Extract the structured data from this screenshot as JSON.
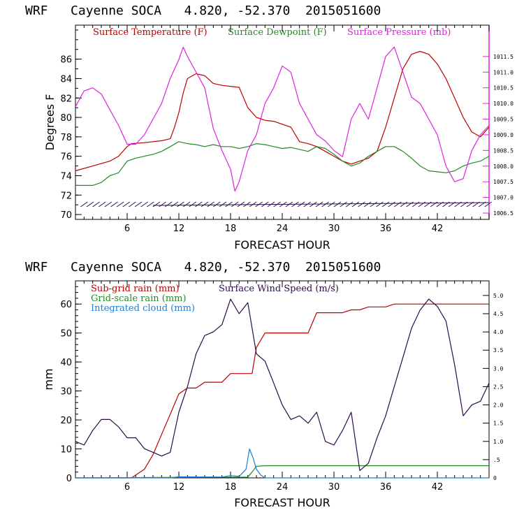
{
  "chart_data": [
    {
      "type": "line",
      "title": "WRF   Cayenne SOCA   4.820, -52.370  2015051600",
      "xlabel": "FORECAST HOUR",
      "ylabel": "Degrees F",
      "xlim": [
        0,
        48
      ],
      "ylim": [
        69.5,
        89.5
      ],
      "x_ticks": [
        "6",
        "12",
        "18",
        "24",
        "30",
        "36",
        "42"
      ],
      "y_ticks": [
        "70",
        "72",
        "74",
        "76",
        "78",
        "80",
        "82",
        "84",
        "86"
      ],
      "right_axis": {
        "ylim": [
          1006.3,
          1012.5
        ],
        "ticks": [
          "1006.5",
          "1007.0",
          "1007.5",
          "1008.0",
          "1008.5",
          "1009.0",
          "1009.5",
          "1010.0",
          "1010.5",
          "1011.0",
          "1011.5"
        ]
      },
      "colors": {
        "temperature": "#bb0000",
        "dewpoint": "#228b22",
        "pressure": "#dd22dd",
        "wind": "#2a0a4a"
      },
      "series": [
        {
          "name": "Surface Temperature (F)",
          "axis": "left",
          "x": [
            0,
            2,
            4,
            5,
            6,
            6.5,
            8,
            9,
            10,
            11,
            11.5,
            12,
            12.5,
            13,
            14,
            15,
            16,
            17,
            18,
            19,
            20,
            21,
            22,
            23,
            24,
            25,
            26,
            27,
            28,
            29,
            30,
            31,
            32,
            33,
            34,
            35,
            36,
            37,
            38,
            39,
            40,
            41,
            42,
            43,
            44,
            45,
            46,
            47,
            48
          ],
          "y": [
            74.5,
            75,
            75.5,
            76,
            77,
            77.3,
            77.4,
            77.5,
            77.6,
            77.8,
            79,
            80.5,
            82.5,
            84,
            84.5,
            84.3,
            83.5,
            83.3,
            83.2,
            83.1,
            81,
            80,
            79.7,
            79.6,
            79.3,
            79,
            77.5,
            77.3,
            77,
            76.5,
            76,
            75.5,
            75.2,
            75.5,
            75.8,
            76.5,
            79,
            82,
            85,
            86.5,
            86.8,
            86.5,
            85.5,
            84,
            82,
            80,
            78.5,
            78,
            79
          ]
        },
        {
          "name": "Surface Dewpoint (F)",
          "axis": "left",
          "x": [
            0,
            2,
            3,
            4,
            5,
            6,
            7,
            8,
            9,
            10,
            11,
            12,
            13,
            14,
            15,
            16,
            17,
            18,
            19,
            20,
            21,
            22,
            23,
            24,
            25,
            26,
            27,
            28,
            29,
            30,
            31,
            32,
            33,
            34,
            35,
            36,
            37,
            38,
            39,
            40,
            41,
            42,
            43,
            44,
            45,
            46,
            47,
            48
          ],
          "y": [
            73,
            73,
            73.3,
            74,
            74.3,
            75.5,
            75.8,
            76,
            76.2,
            76.5,
            77,
            77.5,
            77.3,
            77.2,
            77,
            77.2,
            77,
            77,
            76.8,
            77,
            77.3,
            77.2,
            77,
            76.8,
            76.9,
            76.7,
            76.5,
            77,
            76.8,
            76.2,
            75.5,
            75,
            75.3,
            76,
            76.5,
            77,
            77,
            76.5,
            75.8,
            75,
            74.5,
            74.4,
            74.3,
            74.5,
            75,
            75.3,
            75.5,
            76
          ]
        },
        {
          "name": "Surface Pressure (mb)",
          "axis": "right",
          "x": [
            0,
            1,
            2,
            3,
            4,
            5,
            6,
            7,
            8,
            9,
            10,
            11,
            12,
            12.5,
            13,
            14,
            15,
            16,
            17,
            18,
            18.5,
            19,
            20,
            21,
            22,
            23,
            24,
            25,
            26,
            27,
            28,
            29,
            30,
            31,
            32,
            33,
            34,
            35,
            36,
            37,
            38,
            39,
            40,
            41,
            42,
            43,
            44,
            45,
            46,
            47,
            48
          ],
          "y": [
            1009.9,
            1010.4,
            1010.5,
            1010.3,
            1009.8,
            1009.3,
            1008.7,
            1008.7,
            1009.0,
            1009.5,
            1010.0,
            1010.8,
            1011.4,
            1011.8,
            1011.5,
            1011.0,
            1010.5,
            1009.2,
            1008.5,
            1007.9,
            1007.2,
            1007.5,
            1008.5,
            1009.0,
            1010.0,
            1010.5,
            1011.2,
            1011.0,
            1010.0,
            1009.5,
            1009.0,
            1008.8,
            1008.5,
            1008.3,
            1009.5,
            1010.0,
            1009.5,
            1010.5,
            1011.5,
            1011.8,
            1011.0,
            1010.2,
            1010.0,
            1009.5,
            1009.0,
            1008.0,
            1007.5,
            1007.6,
            1008.5,
            1009.0,
            1009.3
          ]
        }
      ],
      "wind_barbs": "along bottom of panel"
    },
    {
      "type": "line",
      "title": "WRF   Cayenne SOCA   4.820, -52.370  2015051600",
      "xlabel": "FORECAST HOUR",
      "ylabel": "mm",
      "xlim": [
        0,
        48
      ],
      "ylim": [
        0,
        68
      ],
      "x_ticks": [
        "6",
        "12",
        "18",
        "24",
        "30",
        "36",
        "42"
      ],
      "y_ticks": [
        "0",
        "10",
        "20",
        "30",
        "40",
        "50",
        "60"
      ],
      "right_axis": {
        "ylim": [
          0,
          5.4
        ],
        "ticks": [
          "0",
          ".5",
          "1.0",
          "1.5",
          "2.0",
          "2.5",
          "3.0",
          "3.5",
          "4.0",
          "4.5",
          "5.0"
        ]
      },
      "colors": {
        "subgrid": "#bb0000",
        "gridscale": "#228b22",
        "cloud": "#1a7fd6",
        "wind": "#2a0a4a"
      },
      "series": [
        {
          "name": "Sub-grid rain (mm)",
          "axis": "left",
          "x": [
            0,
            6.5,
            8,
            9,
            10,
            11,
            12,
            13,
            14,
            15,
            16,
            17,
            18,
            19,
            20,
            20.5,
            21,
            22,
            23,
            24,
            25,
            26,
            27,
            28,
            29,
            30,
            31,
            32,
            33,
            34,
            35,
            36,
            37,
            38,
            39,
            40,
            41,
            42,
            43,
            44,
            45,
            46,
            47,
            48
          ],
          "y": [
            0,
            0,
            3,
            8,
            15,
            22,
            29,
            31,
            31,
            33,
            33,
            33,
            36,
            36,
            36,
            36,
            45,
            50,
            50,
            50,
            50,
            50,
            50,
            57,
            57,
            57,
            57,
            58,
            58,
            59,
            59,
            59,
            60,
            60,
            60,
            60,
            60,
            60,
            60,
            60,
            60,
            60,
            60,
            60
          ]
        },
        {
          "name": "Grid-scale rain (mm)",
          "axis": "left",
          "x": [
            0,
            20,
            20.5,
            21,
            22,
            48
          ],
          "y": [
            0,
            0.3,
            2,
            4,
            4.2,
            4.2
          ]
        },
        {
          "name": "Integrated cloud (mm)",
          "axis": "left",
          "x": [
            0,
            11,
            12,
            17,
            18,
            19,
            19.8,
            20.2,
            20.6,
            21,
            21.5,
            22,
            48
          ],
          "y": [
            0,
            0,
            0.4,
            0.3,
            0.8,
            0.5,
            3,
            10,
            7,
            3,
            1,
            0,
            0
          ]
        },
        {
          "name": "Surface Wind Speed (m/s)",
          "axis": "right",
          "x": [
            0,
            1,
            2,
            3,
            4,
            5,
            6,
            7,
            8,
            9,
            10,
            11,
            12,
            13,
            14,
            15,
            16,
            17,
            18,
            19,
            20,
            21,
            22,
            23,
            24,
            25,
            26,
            27,
            28,
            29,
            30,
            31,
            32,
            33,
            34,
            35,
            36,
            37,
            38,
            39,
            40,
            41,
            42,
            43,
            44,
            45,
            46,
            47,
            48
          ],
          "y": [
            1.0,
            0.9,
            1.3,
            1.6,
            1.6,
            1.4,
            1.1,
            1.1,
            0.8,
            0.7,
            0.6,
            0.7,
            1.8,
            2.5,
            3.4,
            3.9,
            4.0,
            4.2,
            4.9,
            4.5,
            4.8,
            3.4,
            3.2,
            2.6,
            2.0,
            1.6,
            1.7,
            1.5,
            1.8,
            1.0,
            0.9,
            1.3,
            1.8,
            0.2,
            0.4,
            1.1,
            1.7,
            2.5,
            3.3,
            4.1,
            4.6,
            4.9,
            4.7,
            4.3,
            3.1,
            1.7,
            2.0,
            2.1,
            2.6
          ]
        }
      ]
    }
  ]
}
